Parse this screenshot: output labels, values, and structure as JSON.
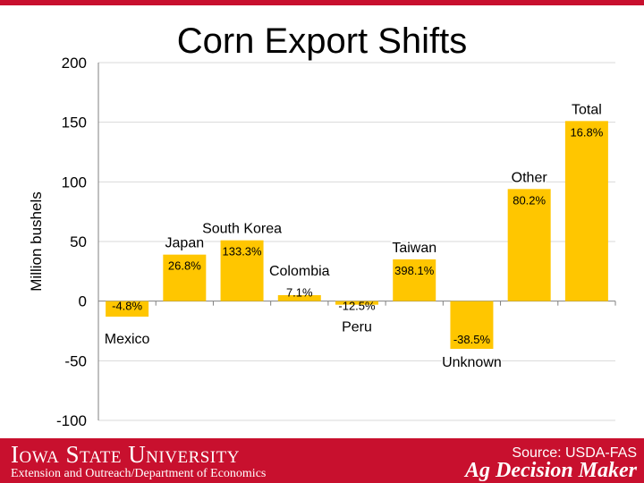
{
  "footer": {
    "university": "Iowa State University",
    "department": "Extension and Outreach/Department of Economics",
    "source": "Source: USDA-FAS",
    "brand": "Ag Decision Maker"
  },
  "colors": {
    "bar": "#ffc600",
    "brand_red": "#c8102e",
    "grid": "#d9d9d9"
  },
  "chart_data": {
    "type": "bar",
    "title": "Corn Export Shifts",
    "ylabel": "Million bushels",
    "ylim": [
      -100,
      200
    ],
    "yticks": [
      "200",
      "150",
      "100",
      "50",
      "0",
      "-50",
      "-100"
    ],
    "grid": true,
    "categories": [
      "Mexico",
      "Japan",
      "South Korea",
      "Colombia",
      "Peru",
      "Taiwan",
      "Unknown",
      "Other",
      "Total"
    ],
    "values": [
      -13,
      39,
      51,
      5,
      -3,
      35,
      -40,
      94,
      151
    ],
    "data_labels": [
      "-4.8%",
      "26.8%",
      "133.3%",
      "7.1%",
      "-12.5%",
      "398.1%",
      "-38.5%",
      "80.2%",
      "16.8%"
    ]
  }
}
